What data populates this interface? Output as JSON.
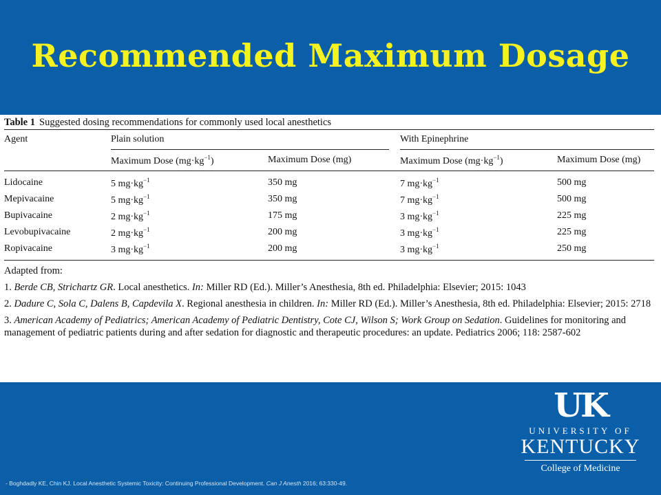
{
  "slide": {
    "title": "Recommended Maximum Dosage"
  },
  "table": {
    "caption_label": "Table 1",
    "caption_text": "Suggested dosing recommendations for commonly used local anesthetics",
    "col_agent": "Agent",
    "group_plain": "Plain solution",
    "group_epi": "With Epinephrine",
    "sub_dose_kg": "Maximum Dose (mg·kg",
    "sub_dose_kg_exp": "−1",
    "sub_dose_kg_close": ")",
    "sub_dose_mg": "Maximum Dose (mg)",
    "unit_kg": " mg·kg",
    "unit_exp": "−1",
    "rows": [
      {
        "agent": "Lidocaine",
        "plain_kg": "5",
        "plain_mg": "350 mg",
        "epi_kg": "7",
        "epi_mg": "500 mg"
      },
      {
        "agent": "Mepivacaine",
        "plain_kg": "5",
        "plain_mg": "350 mg",
        "epi_kg": "7",
        "epi_mg": "500 mg"
      },
      {
        "agent": "Bupivacaine",
        "plain_kg": "2",
        "plain_mg": "175 mg",
        "epi_kg": "3",
        "epi_mg": "225 mg"
      },
      {
        "agent": "Levobupivacaine",
        "plain_kg": "2",
        "plain_mg": "200 mg",
        "epi_kg": "3",
        "epi_mg": "225 mg"
      },
      {
        "agent": "Ropivacaine",
        "plain_kg": "3",
        "plain_mg": "200 mg",
        "epi_kg": "3",
        "epi_mg": "250 mg"
      }
    ],
    "adapted_from": "Adapted from:",
    "ref1": {
      "num": "1.",
      "authors": "Berde CB, Strichartz GR",
      "mid": ". Local anesthetics. ",
      "in": "In:",
      "rest": " Miller RD (Ed.). Miller’s Anesthesia, 8th ed. Philadelphia: Elsevier; 2015: 1043"
    },
    "ref2": {
      "num": "2.",
      "authors": "Dadure C, Sola C, Dalens B, Capdevila X",
      "mid": ". Regional anesthesia in children. ",
      "in": "In:",
      "rest": " Miller RD (Ed.). Miller’s Anesthesia, 8th ed. Philadelphia: Elsevier; 2015: 2718"
    },
    "ref3": {
      "num": "3.",
      "authors": "American Academy of Pediatrics; American Academy of Pediatric Dentistry, Cote CJ, Wilson S; Work Group on Sedation",
      "rest": ". Guidelines for monitoring and management of pediatric patients during and after sedation for diagnostic and therapeutic procedures: an update. Pediatrics 2006; 118: 2587-602"
    }
  },
  "logo": {
    "mark": "UK",
    "line1": "UNIVERSITY OF",
    "line2": "KENTUCKY",
    "line3": "College of Medicine"
  },
  "footer": {
    "pre": "- Boghdadly KE, Chin KJ. Local Anesthetic Systemic Toxicity: Continuing Professional Development. ",
    "journal": "Can J Anesth",
    "post": " 2016; 63:330-49."
  }
}
